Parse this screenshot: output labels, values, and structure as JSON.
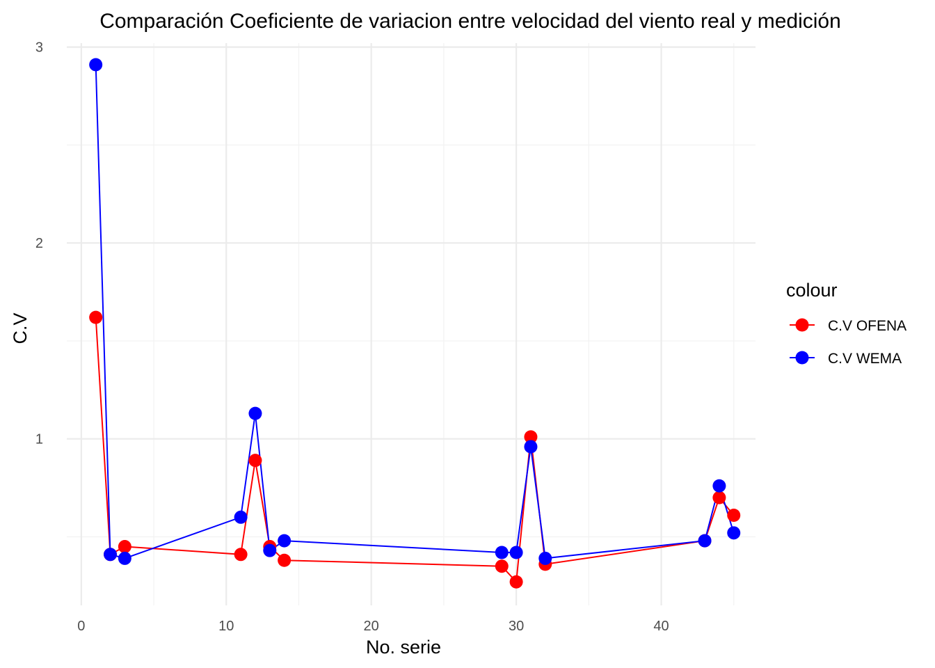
{
  "chart_data": {
    "type": "line",
    "title": "Comparación Coeficiente de variacion entre velocidad del viento real y medición",
    "xlabel": "No. serie",
    "ylabel": "C.V",
    "xlim": [
      -1,
      46.5
    ],
    "ylim": [
      0.15,
      3.02
    ],
    "x_ticks": [
      0,
      10,
      20,
      30,
      40
    ],
    "y_ticks": [
      1,
      2,
      3
    ],
    "grid": true,
    "legend": {
      "title": "colour",
      "position": "right"
    },
    "series": [
      {
        "name": "C.V OFENA",
        "color": "#ff0000",
        "x": [
          1,
          2,
          3,
          11,
          12,
          13,
          14,
          29,
          30,
          31,
          32,
          43,
          44,
          45
        ],
        "y": [
          1.62,
          0.41,
          0.45,
          0.41,
          0.89,
          0.45,
          0.38,
          0.35,
          0.27,
          1.01,
          0.36,
          0.48,
          0.7,
          0.61
        ]
      },
      {
        "name": "C.V WEMA",
        "color": "#0000ff",
        "x": [
          1,
          2,
          3,
          11,
          12,
          13,
          14,
          29,
          30,
          31,
          32,
          43,
          44,
          45
        ],
        "y": [
          2.91,
          0.41,
          0.39,
          0.6,
          1.13,
          0.43,
          0.48,
          0.42,
          0.42,
          0.96,
          0.39,
          0.48,
          0.76,
          0.52
        ]
      }
    ]
  }
}
